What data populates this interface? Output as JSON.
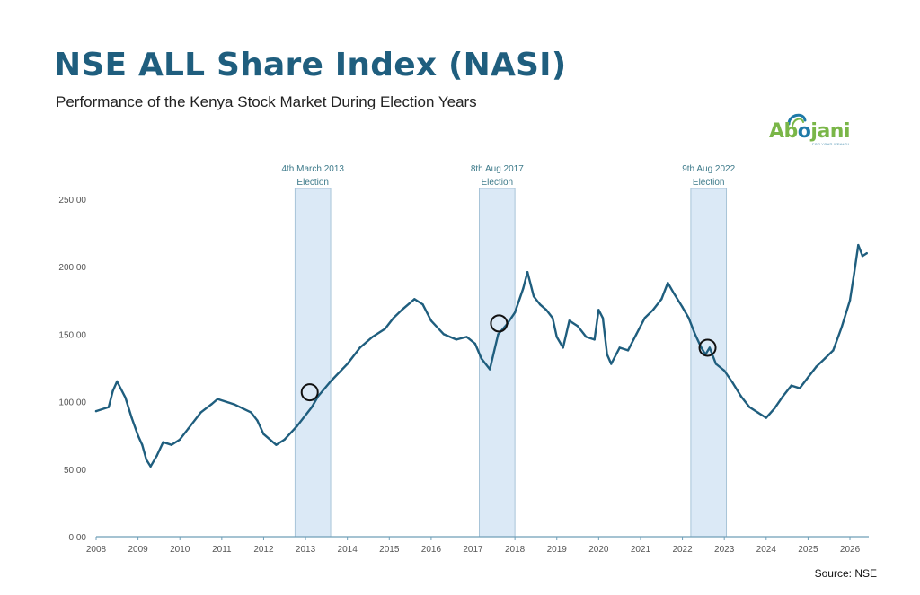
{
  "header": {
    "title": "NSE ALL Share Index (NASI)",
    "subtitle": "Performance of the Kenya Stock Market During Election Years"
  },
  "logo": {
    "text_a": "Ab",
    "text_o": "o",
    "text_b": "jani",
    "tagline": "FOR YOUR WEALTH",
    "colors": {
      "green": "#7ab648",
      "blue": "#1f7aa8"
    }
  },
  "source": "Source: NSE",
  "colors": {
    "line": "#1f5e7e",
    "band_fill": "#dbe9f6",
    "band_stroke": "#a8c4d8",
    "axis": "#6f9fb8"
  },
  "chart_data": {
    "type": "line",
    "title": "NSE ALL Share Index (NASI)",
    "subtitle": "Performance of the Kenya Stock Market During Election Years",
    "xlabel": "",
    "ylabel": "",
    "xlim": [
      2008,
      2026.45
    ],
    "ylim": [
      0,
      250
    ],
    "x_ticks": [
      2008,
      2009,
      2010,
      2011,
      2012,
      2013,
      2014,
      2015,
      2016,
      2017,
      2018,
      2019,
      2020,
      2021,
      2022,
      2023,
      2024,
      2025,
      2026
    ],
    "y_ticks": [
      "0.00",
      "50.00",
      "100.00",
      "150.00",
      "200.00",
      "250.00"
    ],
    "grid": false,
    "series": [
      {
        "x": [
          2008.0,
          2008.3,
          2008.4,
          2008.5,
          2008.7,
          2008.85,
          2009.0,
          2009.1,
          2009.2,
          2009.3,
          2009.45,
          2009.6,
          2009.8,
          2010.0,
          2010.2,
          2010.5,
          2010.75,
          2010.9,
          2011.1,
          2011.3,
          2011.5,
          2011.7,
          2011.85,
          2012.0,
          2012.3,
          2012.5,
          2012.8,
          2013.0,
          2013.15,
          2013.3,
          2013.6,
          2014.0,
          2014.3,
          2014.6,
          2014.9,
          2015.1,
          2015.3,
          2015.6,
          2015.8,
          2016.0,
          2016.3,
          2016.6,
          2016.85,
          2017.05,
          2017.2,
          2017.4,
          2017.6,
          2017.8,
          2018.0,
          2018.2,
          2018.3,
          2018.45,
          2018.6,
          2018.75,
          2018.9,
          2019.0,
          2019.15,
          2019.3,
          2019.5,
          2019.7,
          2019.9,
          2020.0,
          2020.1,
          2020.2,
          2020.3,
          2020.5,
          2020.7,
          2020.9,
          2021.1,
          2021.3,
          2021.5,
          2021.65,
          2021.8,
          2022.0,
          2022.15,
          2022.3,
          2022.45,
          2022.55,
          2022.65,
          2022.8,
          2023.0,
          2023.2,
          2023.4,
          2023.6,
          2023.8,
          2024.0,
          2024.2,
          2024.4,
          2024.6,
          2024.8,
          2025.0,
          2025.2,
          2025.4,
          2025.6,
          2025.8,
          2026.0,
          2026.1,
          2026.2,
          2026.3,
          2026.4
        ],
        "y": [
          93,
          96,
          108,
          115,
          103,
          88,
          75,
          68,
          57,
          52,
          60,
          70,
          68,
          72,
          80,
          92,
          98,
          102,
          100,
          98,
          95,
          92,
          86,
          76,
          68,
          72,
          82,
          90,
          96,
          104,
          115,
          128,
          140,
          148,
          154,
          162,
          168,
          176,
          172,
          160,
          150,
          146,
          148,
          143,
          132,
          124,
          150,
          157,
          166,
          184,
          196,
          178,
          172,
          168,
          162,
          148,
          140,
          160,
          156,
          148,
          146,
          168,
          162,
          135,
          128,
          140,
          138,
          150,
          162,
          168,
          176,
          188,
          180,
          170,
          162,
          150,
          140,
          135,
          140,
          128,
          123,
          114,
          104,
          96,
          92,
          88,
          95,
          104,
          112,
          110,
          118,
          126,
          132,
          138,
          155,
          175,
          195,
          216,
          208,
          210
        ]
      }
    ],
    "bands": [
      {
        "x0": 2012.75,
        "x1": 2013.6,
        "label1": "4th March 2013",
        "label2": "Election",
        "marker_x": 2013.1,
        "marker_y": 107
      },
      {
        "x0": 2017.15,
        "x1": 2018.0,
        "label1": "8th Aug 2017",
        "label2": "Election",
        "marker_x": 2017.62,
        "marker_y": 158
      },
      {
        "x0": 2022.2,
        "x1": 2023.05,
        "label1": "9th Aug 2022",
        "label2": "Election",
        "marker_x": 2022.6,
        "marker_y": 140
      }
    ]
  }
}
